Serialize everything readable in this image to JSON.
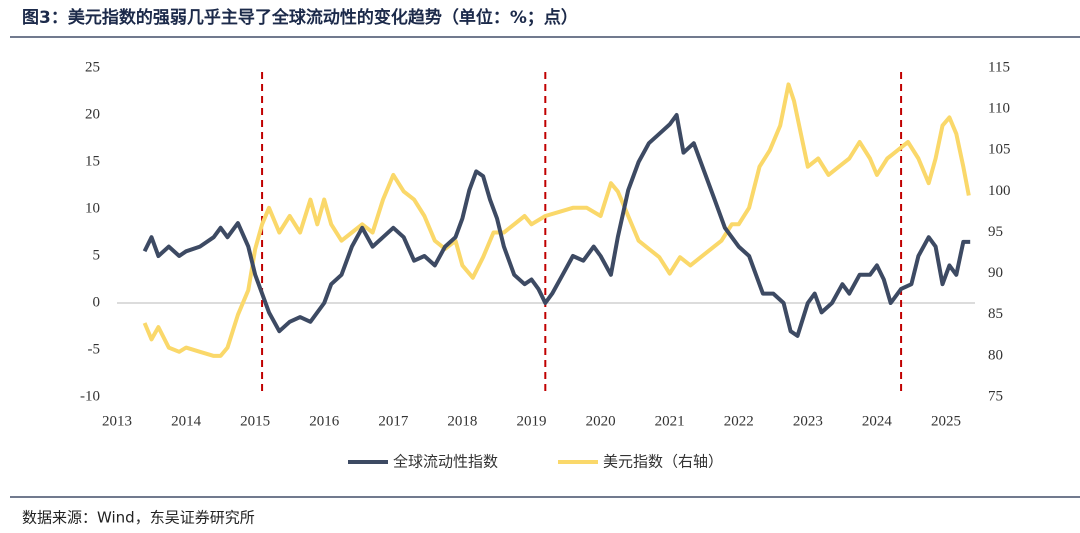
{
  "chart_data": {
    "type": "line",
    "title": "图3：美元指数的强弱几乎主导了全球流动性的变化趋势（单位：%；点）",
    "source": "数据来源：Wind，东吴证券研究所",
    "xlim": [
      2013,
      2025.42
    ],
    "xticks": [
      2013,
      2014,
      2015,
      2016,
      2017,
      2018,
      2019,
      2020,
      2021,
      2022,
      2023,
      2024,
      2025
    ],
    "ylim": [
      -10,
      25
    ],
    "yticks": [
      -10,
      -5,
      0,
      5,
      10,
      15,
      20,
      25
    ],
    "y2lim": [
      75,
      115
    ],
    "y2ticks": [
      75,
      80,
      85,
      90,
      95,
      100,
      105,
      110,
      115
    ],
    "vlines": [
      2015.1,
      2019.2,
      2024.35
    ],
    "series": [
      {
        "name": "全球流动性指数",
        "color": "#3d4a63",
        "x": [
          2013.4,
          2013.5,
          2013.6,
          2013.75,
          2013.9,
          2014.0,
          2014.2,
          2014.4,
          2014.5,
          2014.6,
          2014.75,
          2014.9,
          2015.0,
          2015.1,
          2015.2,
          2015.35,
          2015.5,
          2015.65,
          2015.8,
          2016.0,
          2016.1,
          2016.25,
          2016.4,
          2016.55,
          2016.7,
          2016.85,
          2017.0,
          2017.15,
          2017.3,
          2017.45,
          2017.6,
          2017.75,
          2017.9,
          2018.0,
          2018.1,
          2018.2,
          2018.3,
          2018.4,
          2018.5,
          2018.6,
          2018.75,
          2018.9,
          2019.0,
          2019.1,
          2019.2,
          2019.3,
          2019.45,
          2019.6,
          2019.75,
          2019.9,
          2020.0,
          2020.15,
          2020.25,
          2020.4,
          2020.55,
          2020.7,
          2020.85,
          2021.0,
          2021.1,
          2021.2,
          2021.35,
          2021.5,
          2021.65,
          2021.8,
          2022.0,
          2022.15,
          2022.25,
          2022.35,
          2022.5,
          2022.65,
          2022.75,
          2022.85,
          2023.0,
          2023.1,
          2023.2,
          2023.35,
          2023.5,
          2023.6,
          2023.75,
          2023.9,
          2024.0,
          2024.1,
          2024.2,
          2024.35,
          2024.5,
          2024.6,
          2024.75,
          2024.85,
          2024.95,
          2025.05,
          2025.15,
          2025.25,
          2025.35
        ],
        "values": [
          5.5,
          7,
          5,
          6,
          5,
          5.5,
          6,
          7,
          8,
          7,
          8.5,
          6,
          3,
          1,
          -1,
          -3,
          -2,
          -1.5,
          -2,
          0,
          2,
          3,
          6,
          8,
          6,
          7,
          8,
          7,
          4.5,
          5,
          4,
          6,
          7,
          9,
          12,
          14,
          13.5,
          11,
          9,
          6,
          3,
          2,
          2.5,
          1.5,
          0,
          1,
          3,
          5,
          4.5,
          6,
          5,
          3,
          7,
          12,
          15,
          17,
          18,
          19,
          20,
          16,
          17,
          14,
          11,
          8,
          6,
          5,
          3,
          1,
          1,
          0,
          -3,
          -3.5,
          0,
          1,
          -1,
          0,
          2,
          1,
          3,
          3,
          4,
          2.5,
          0,
          1.5,
          2,
          5,
          7,
          6,
          2,
          4,
          3,
          6.5,
          6.5
        ]
      },
      {
        "name": "美元指数（右轴）",
        "color": "#fad86a",
        "axis": "y2",
        "x": [
          2013.4,
          2013.5,
          2013.6,
          2013.75,
          2013.9,
          2014.0,
          2014.2,
          2014.4,
          2014.5,
          2014.6,
          2014.75,
          2014.9,
          2015.0,
          2015.1,
          2015.2,
          2015.35,
          2015.5,
          2015.65,
          2015.8,
          2015.9,
          2016.0,
          2016.1,
          2016.25,
          2016.4,
          2016.55,
          2016.7,
          2016.85,
          2017.0,
          2017.15,
          2017.3,
          2017.45,
          2017.6,
          2017.75,
          2017.9,
          2018.0,
          2018.15,
          2018.3,
          2018.45,
          2018.6,
          2018.75,
          2018.9,
          2019.0,
          2019.2,
          2019.4,
          2019.6,
          2019.8,
          2020.0,
          2020.15,
          2020.25,
          2020.4,
          2020.55,
          2020.7,
          2020.85,
          2021.0,
          2021.15,
          2021.3,
          2021.45,
          2021.6,
          2021.75,
          2021.9,
          2022.0,
          2022.15,
          2022.3,
          2022.45,
          2022.6,
          2022.72,
          2022.8,
          2022.9,
          2023.0,
          2023.15,
          2023.3,
          2023.45,
          2023.6,
          2023.75,
          2023.9,
          2024.0,
          2024.15,
          2024.3,
          2024.45,
          2024.6,
          2024.75,
          2024.85,
          2024.95,
          2025.05,
          2025.15,
          2025.25,
          2025.33
        ],
        "values": [
          84,
          82,
          83.5,
          81,
          80.5,
          81,
          80.5,
          80,
          80,
          81,
          85,
          88,
          93,
          96,
          98,
          95,
          97,
          95,
          99,
          96,
          99,
          96,
          94,
          95,
          96,
          95,
          99,
          102,
          100,
          99,
          97,
          94,
          93,
          94,
          91,
          89.5,
          92,
          95,
          95,
          96,
          97,
          96,
          97,
          97.5,
          98,
          98,
          97,
          101,
          100,
          97,
          94,
          93,
          92,
          90,
          92,
          91,
          92,
          93,
          94,
          96,
          96,
          98,
          103,
          105,
          108,
          113,
          111,
          107,
          103,
          104,
          102,
          103,
          104,
          106,
          104,
          102,
          104,
          105,
          106,
          104,
          101,
          104,
          108,
          109,
          107,
          103,
          99.5
        ]
      }
    ]
  }
}
